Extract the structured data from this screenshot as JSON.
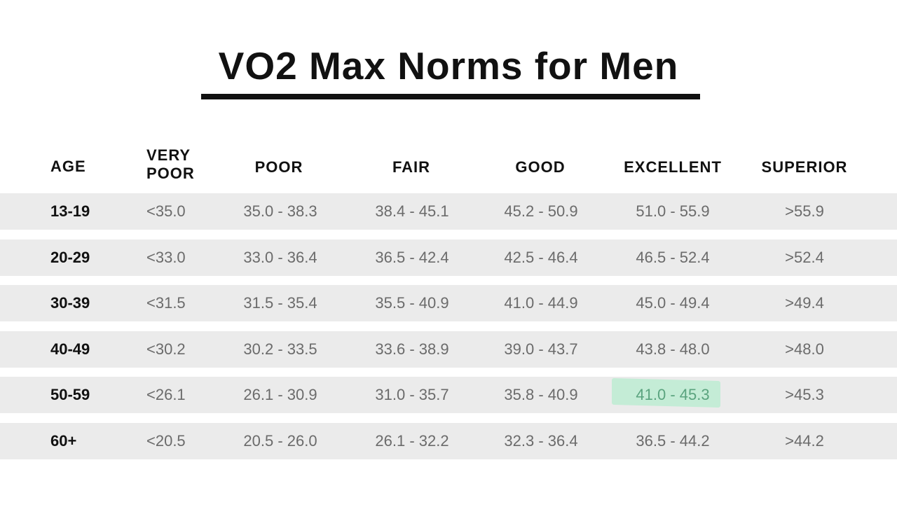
{
  "chart_data": {
    "type": "table",
    "title": "VO2 Max Norms for Men",
    "columns": [
      "AGE",
      "VERY POOR",
      "POOR",
      "FAIR",
      "GOOD",
      "EXCELLENT",
      "SUPERIOR"
    ],
    "header_lines": {
      "age": "AGE",
      "very_poor_1": "VERY",
      "very_poor_2": "POOR",
      "poor": "POOR",
      "fair": "FAIR",
      "good": "GOOD",
      "excellent": "EXCELLENT",
      "superior": "SUPERIOR"
    },
    "rows": [
      [
        "13-19",
        "<35.0",
        "35.0 - 38.3",
        "38.4 - 45.1",
        "45.2 - 50.9",
        "51.0 - 55.9",
        ">55.9"
      ],
      [
        "20-29",
        "<33.0",
        "33.0 - 36.4",
        "36.5 - 42.4",
        "42.5 - 46.4",
        "46.5 - 52.4",
        ">52.4"
      ],
      [
        "30-39",
        "<31.5",
        "31.5 - 35.4",
        "35.5 - 40.9",
        "41.0 - 44.9",
        "45.0 - 49.4",
        ">49.4"
      ],
      [
        "40-49",
        "<30.2",
        "30.2 - 33.5",
        "33.6 - 38.9",
        "39.0 - 43.7",
        "43.8 - 48.0",
        ">48.0"
      ],
      [
        "50-59",
        "<26.1",
        "26.1 - 30.9",
        "31.0 - 35.7",
        "35.8 - 40.9",
        "41.0 - 45.3",
        ">45.3"
      ],
      [
        "60+",
        "<20.5",
        "20.5 - 26.0",
        "26.1 - 32.2",
        "32.3 - 36.4",
        "36.5 - 44.2",
        ">44.2"
      ]
    ],
    "highlight": {
      "row": 4,
      "column": 5,
      "color": "#c4ecd6"
    },
    "row_band_color": "#ebebeb"
  }
}
